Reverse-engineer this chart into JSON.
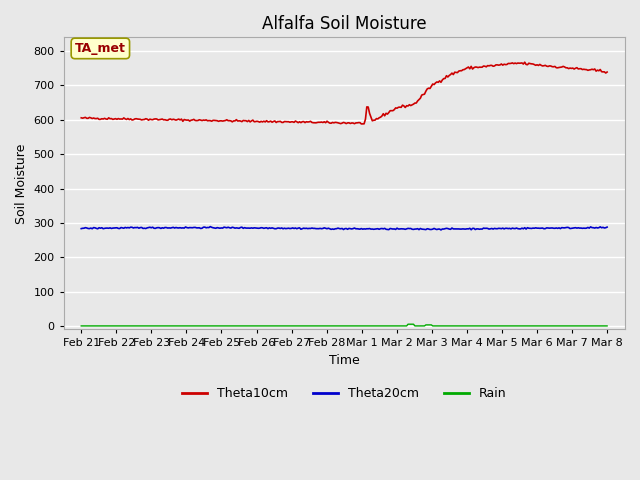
{
  "title": "Alfalfa Soil Moisture",
  "xlabel": "Time",
  "ylabel": "Soil Moisture",
  "annotation_text": "TA_met",
  "ylim": [
    -10,
    840
  ],
  "yticks": [
    0,
    100,
    200,
    300,
    400,
    500,
    600,
    700,
    800
  ],
  "xlabels": [
    "Feb 21",
    "Feb 22",
    "Feb 23",
    "Feb 24",
    "Feb 25",
    "Feb 26",
    "Feb 27",
    "Feb 28",
    "Mar 1",
    "Mar 2",
    "Mar 3",
    "Mar 4",
    "Mar 5",
    "Mar 6",
    "Mar 7",
    "Mar 8"
  ],
  "theta10_color": "#cc0000",
  "theta20_color": "#0000cc",
  "rain_color": "#00aa00",
  "plot_bg_color": "#e8e8e8",
  "fig_bg_color": "#e8e8e8",
  "grid_color": "#ffffff",
  "legend_labels": [
    "Theta10cm",
    "Theta20cm",
    "Rain"
  ],
  "title_fontsize": 12,
  "axis_label_fontsize": 9,
  "tick_fontsize": 8
}
